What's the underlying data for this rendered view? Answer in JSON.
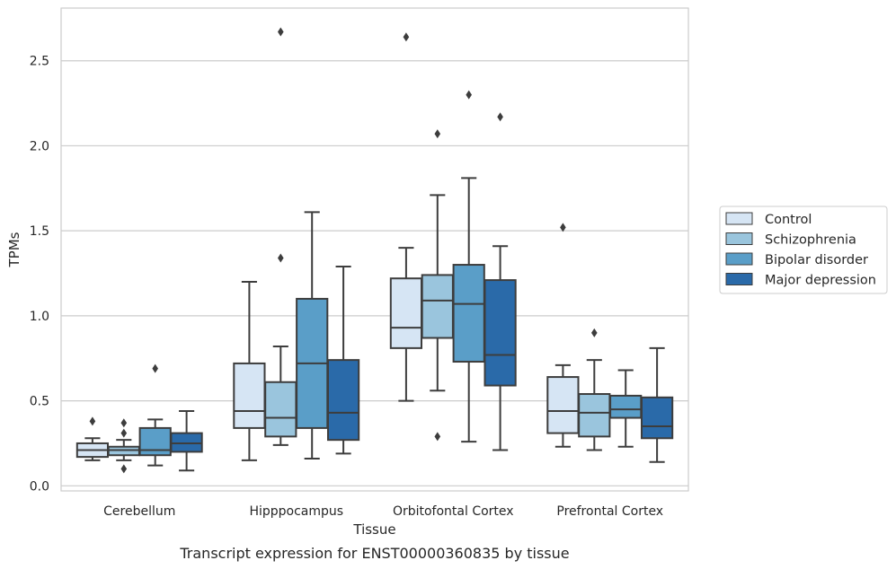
{
  "chart_data": {
    "type": "boxplot",
    "categories": [
      "Cerebellum",
      "Hipppocampus",
      "Orbitofontal Cortex",
      "Prefrontal Cortex"
    ],
    "xlabel": "Tissue",
    "ylabel": "TPMs",
    "caption": "Transcript expression for ENST00000360835 by tissue",
    "ylim": [
      -0.03,
      2.81
    ],
    "yticks": [
      0.0,
      0.5,
      1.0,
      1.5,
      2.0,
      2.5
    ],
    "grid": "horizontal",
    "legend_position": "right",
    "series": [
      {
        "name": "Control",
        "color": "#d6e5f4",
        "boxes": [
          {
            "whislo": 0.15,
            "q1": 0.17,
            "med": 0.21,
            "q3": 0.25,
            "whishi": 0.28,
            "fliers": [
              0.38
            ]
          },
          {
            "whislo": 0.15,
            "q1": 0.34,
            "med": 0.44,
            "q3": 0.72,
            "whishi": 1.2,
            "fliers": []
          },
          {
            "whislo": 0.5,
            "q1": 0.81,
            "med": 0.93,
            "q3": 1.22,
            "whishi": 1.4,
            "fliers": [
              2.64
            ]
          },
          {
            "whislo": 0.23,
            "q1": 0.31,
            "med": 0.44,
            "q3": 0.64,
            "whishi": 0.71,
            "fliers": [
              1.52
            ]
          }
        ]
      },
      {
        "name": "Schizophrenia",
        "color": "#9ac5dd",
        "boxes": [
          {
            "whislo": 0.15,
            "q1": 0.18,
            "med": 0.21,
            "q3": 0.23,
            "whishi": 0.27,
            "fliers": [
              0.37,
              0.31,
              0.1
            ]
          },
          {
            "whislo": 0.24,
            "q1": 0.29,
            "med": 0.4,
            "q3": 0.61,
            "whishi": 0.82,
            "fliers": [
              1.34,
              2.67
            ]
          },
          {
            "whislo": 0.56,
            "q1": 0.87,
            "med": 1.09,
            "q3": 1.24,
            "whishi": 1.71,
            "fliers": [
              2.07,
              0.29
            ]
          },
          {
            "whislo": 0.21,
            "q1": 0.29,
            "med": 0.43,
            "q3": 0.54,
            "whishi": 0.74,
            "fliers": [
              0.9
            ]
          }
        ]
      },
      {
        "name": "Bipolar disorder",
        "color": "#5a9ec8",
        "boxes": [
          {
            "whislo": 0.12,
            "q1": 0.18,
            "med": 0.21,
            "q3": 0.34,
            "whishi": 0.39,
            "fliers": [
              0.69
            ]
          },
          {
            "whislo": 0.16,
            "q1": 0.34,
            "med": 0.72,
            "q3": 1.1,
            "whishi": 1.61,
            "fliers": []
          },
          {
            "whislo": 0.26,
            "q1": 0.73,
            "med": 1.07,
            "q3": 1.3,
            "whishi": 1.81,
            "fliers": [
              2.3
            ]
          },
          {
            "whislo": 0.23,
            "q1": 0.4,
            "med": 0.45,
            "q3": 0.53,
            "whishi": 0.68,
            "fliers": []
          }
        ]
      },
      {
        "name": "Major depression",
        "color": "#2a6aa9",
        "boxes": [
          {
            "whislo": 0.09,
            "q1": 0.2,
            "med": 0.25,
            "q3": 0.31,
            "whishi": 0.44,
            "fliers": []
          },
          {
            "whislo": 0.19,
            "q1": 0.27,
            "med": 0.43,
            "q3": 0.74,
            "whishi": 1.29,
            "fliers": []
          },
          {
            "whislo": 0.21,
            "q1": 0.59,
            "med": 0.77,
            "q3": 1.21,
            "whishi": 1.41,
            "fliers": [
              2.17
            ]
          },
          {
            "whislo": 0.14,
            "q1": 0.28,
            "med": 0.35,
            "q3": 0.52,
            "whishi": 0.81,
            "fliers": []
          }
        ]
      }
    ],
    "style": {
      "grid_color": "#cccccc",
      "frame_color": "#cccccc",
      "line_color": "#3d3d3d"
    }
  }
}
